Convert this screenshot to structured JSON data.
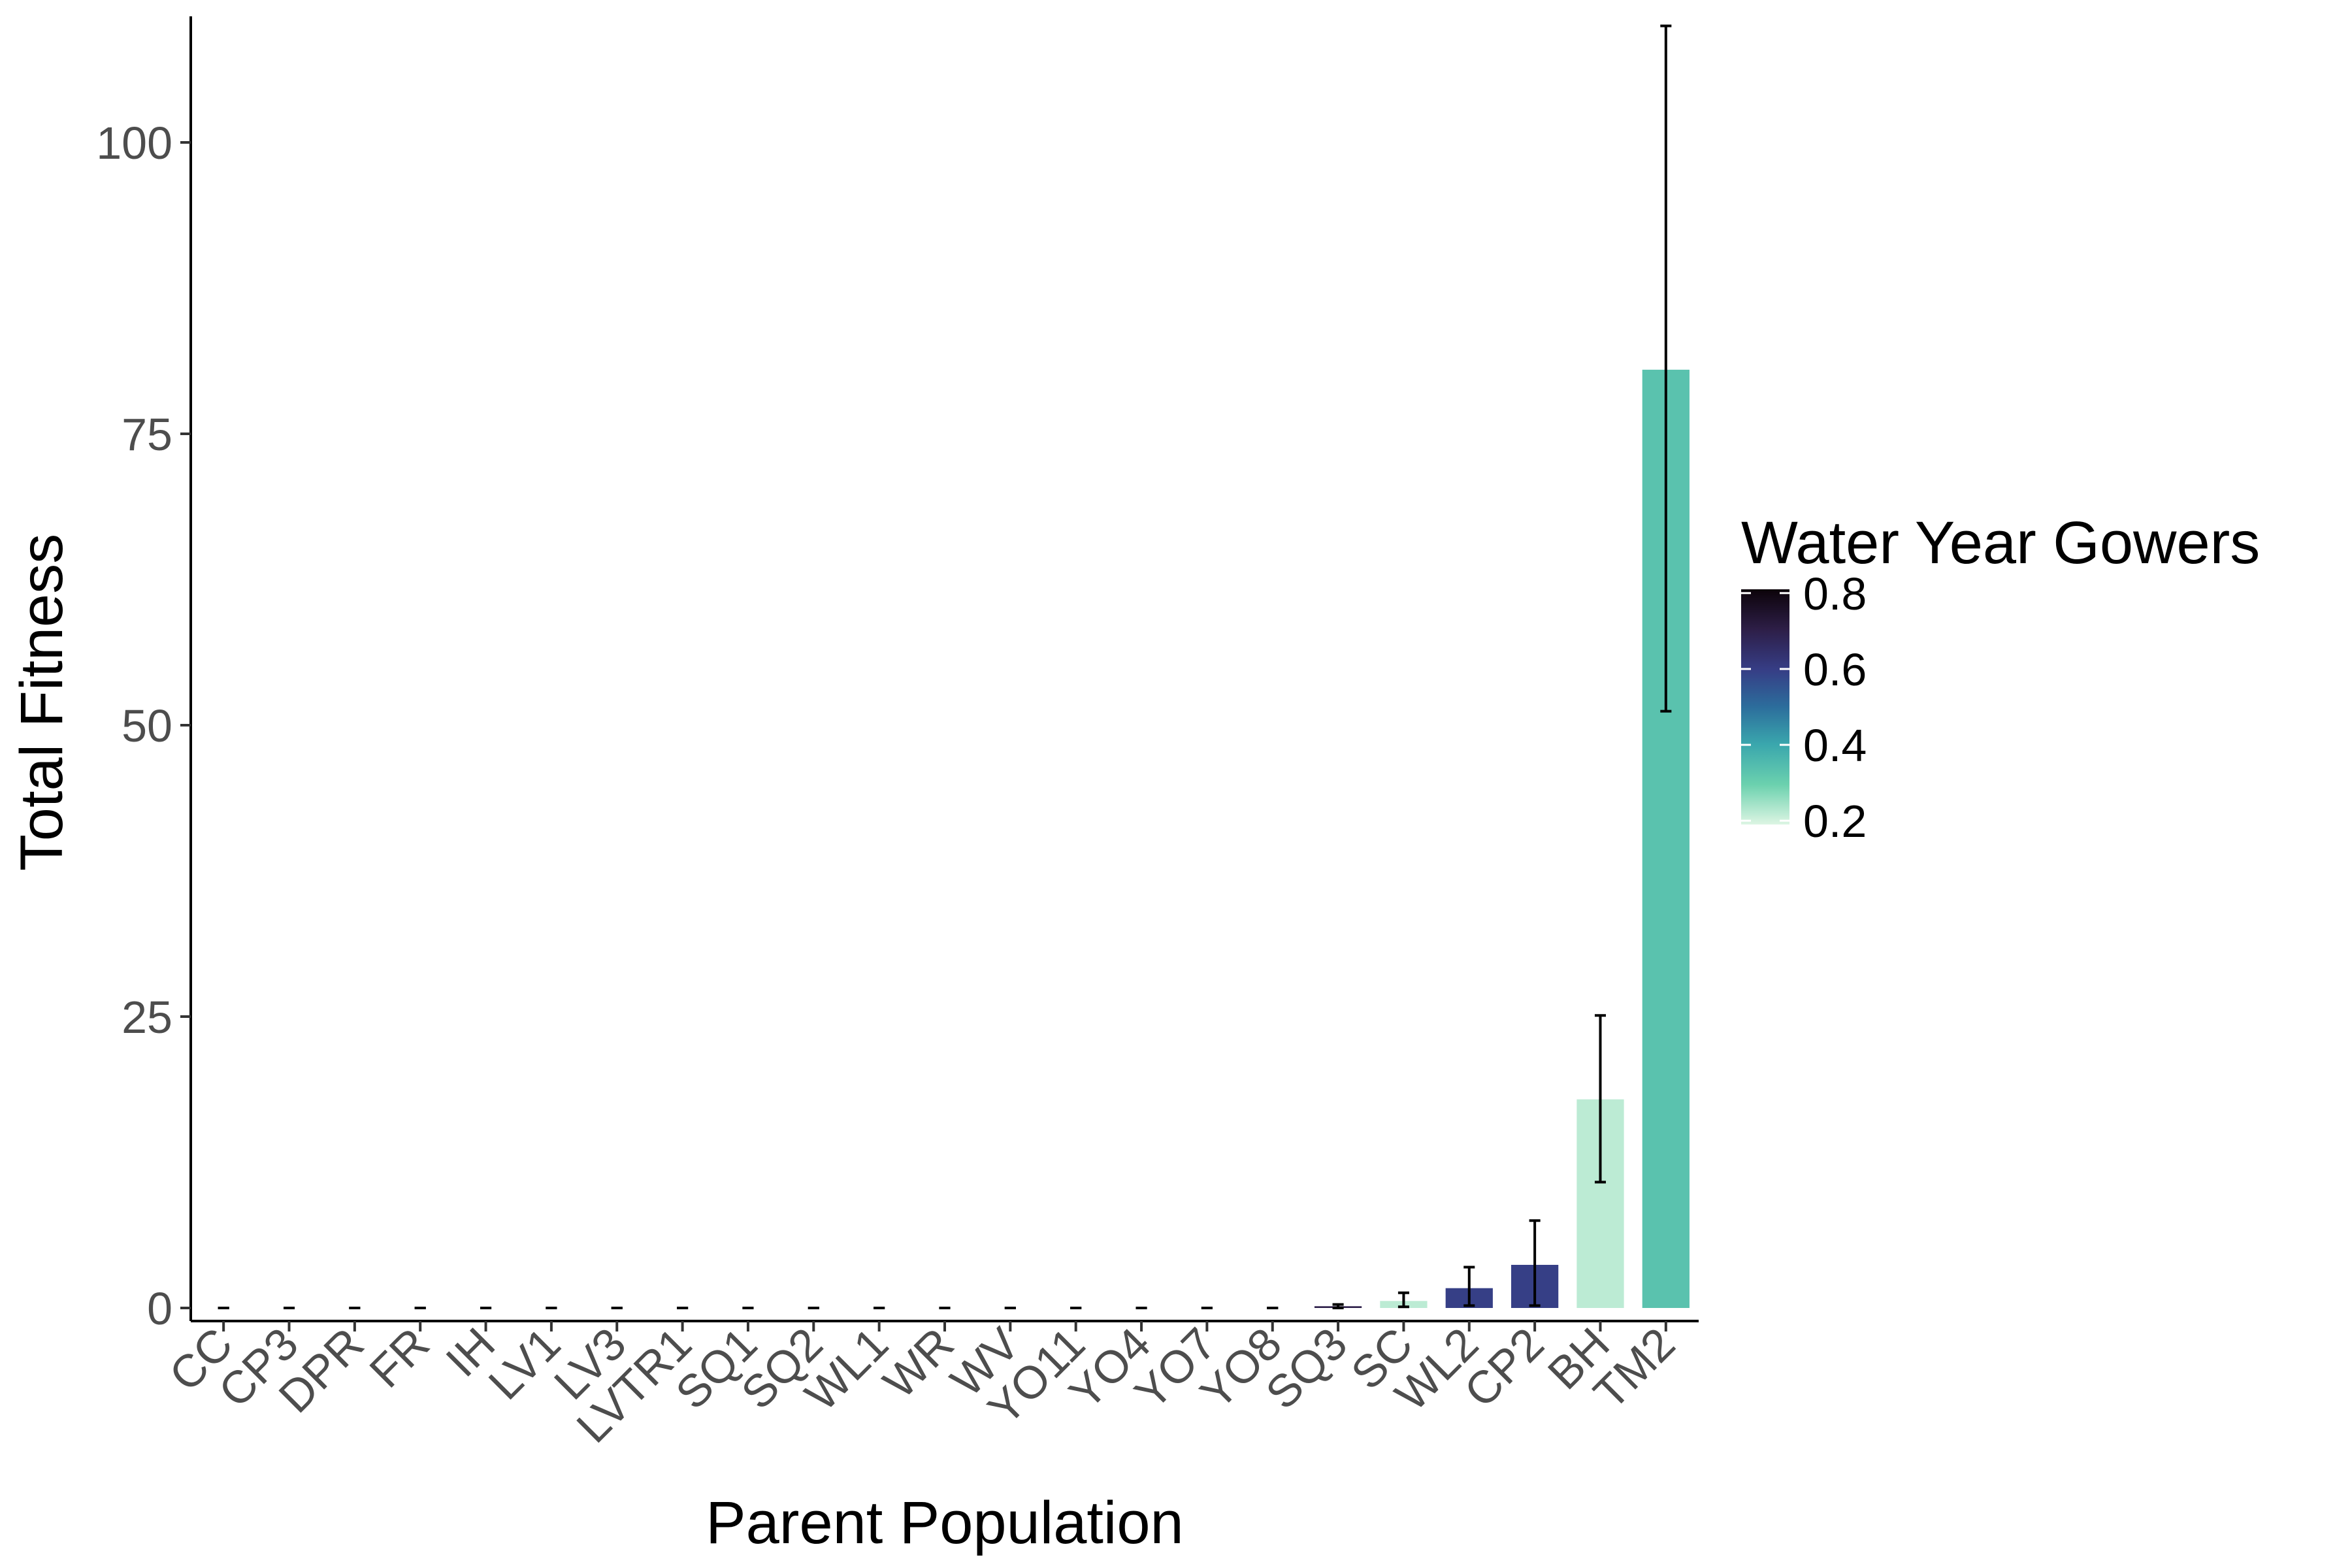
{
  "chart_data": {
    "type": "bar",
    "xlabel": "Parent Population",
    "ylabel": "Total Fitness",
    "ylim": [
      0,
      110
    ],
    "yticks": [
      0,
      25,
      50,
      75,
      100
    ],
    "grid": false,
    "categories": [
      "CC",
      "CP3",
      "DPR",
      "FR",
      "IH",
      "LV1",
      "LV3",
      "LVTR1",
      "SQ1",
      "SQ2",
      "WL1",
      "WR",
      "WV",
      "YO11",
      "YO4",
      "YO7",
      "YO8",
      "SQ3",
      "SC",
      "WL2",
      "CP2",
      "BH",
      "TM2"
    ],
    "values": [
      0,
      0,
      0,
      0,
      0,
      0,
      0,
      0,
      0,
      0,
      0,
      0,
      0,
      0,
      0,
      0,
      0,
      0.15,
      0.6,
      1.7,
      3.7,
      17.9,
      80.5
    ],
    "error_lower": [
      0,
      0,
      0,
      0,
      0,
      0,
      0,
      0,
      0,
      0,
      0,
      0,
      0,
      0,
      0,
      0,
      0,
      0.0,
      0.1,
      0.2,
      0.2,
      10.8,
      51.2
    ],
    "error_upper": [
      0,
      0,
      0,
      0,
      0,
      0,
      0,
      0,
      0,
      0,
      0,
      0,
      0,
      0,
      0,
      0,
      0,
      0.3,
      1.3,
      3.5,
      7.5,
      25.1,
      110.0
    ],
    "fill_value": [
      0.8,
      0.75,
      0.7,
      0.7,
      0.75,
      0.8,
      0.8,
      0.8,
      0.7,
      0.7,
      0.65,
      0.6,
      0.6,
      0.6,
      0.6,
      0.6,
      0.6,
      0.7,
      0.22,
      0.6,
      0.6,
      0.22,
      0.33
    ],
    "legend": {
      "title": "Water Year Gowers",
      "position": "right",
      "ticks": [
        "0.8",
        "0.6",
        "0.4",
        "0.2"
      ],
      "tick_values": [
        0.8,
        0.6,
        0.4,
        0.2
      ],
      "range": [
        0.19,
        0.81
      ]
    },
    "colors": {
      "gradient": [
        "#ddf5e3",
        "#6bd1ae",
        "#3aa7ad",
        "#2c6d9c",
        "#363d85",
        "#2d1e47",
        "#0c0309"
      ],
      "error_bar": "#000000",
      "axis": "#000000"
    }
  }
}
